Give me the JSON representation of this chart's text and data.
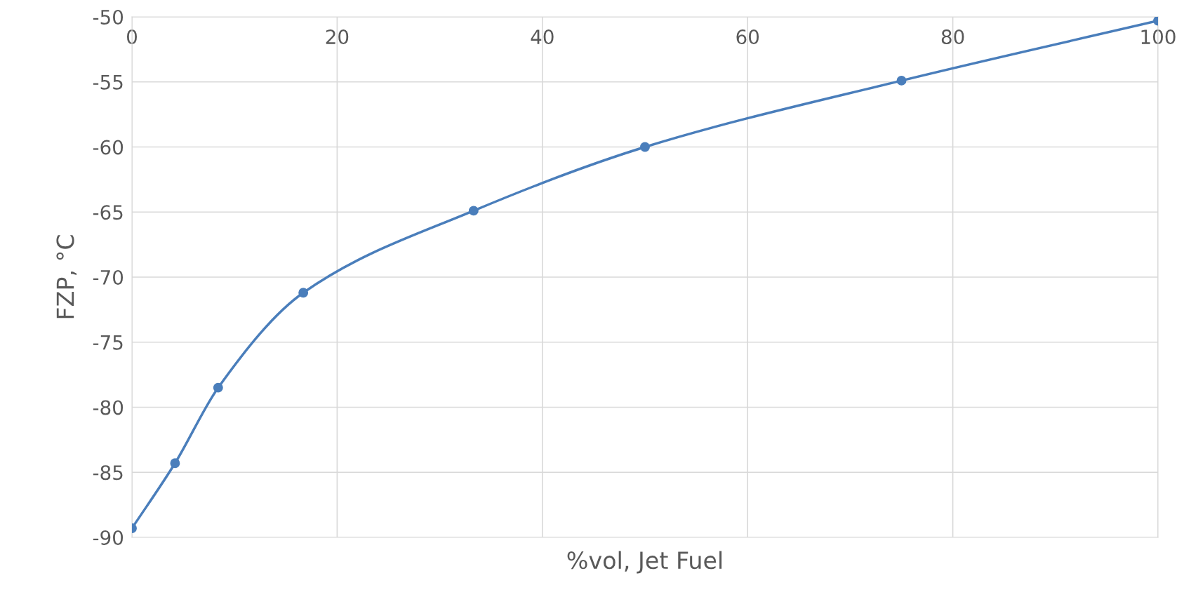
{
  "chart_data": {
    "type": "line",
    "xlabel": "%vol, Jet Fuel",
    "ylabel": "FZP, °C",
    "x": [
      0,
      4.2,
      8.4,
      16.7,
      33.3,
      50,
      75,
      100
    ],
    "series": [
      {
        "color": "#4a7ebb",
        "values": [
          -89.3,
          -84.3,
          -78.5,
          -71.2,
          -64.9,
          -60.0,
          -54.9,
          -50.3
        ]
      }
    ],
    "xlim": [
      0,
      100
    ],
    "xticks": [
      0,
      20,
      40,
      60,
      80,
      100
    ],
    "ylim": [
      -90,
      -50
    ],
    "yticks": [
      -90,
      -85,
      -80,
      -75,
      -70,
      -65,
      -60,
      -55,
      -50
    ],
    "grid": true,
    "marker": "circle",
    "line_style": "solid",
    "legend": false
  }
}
